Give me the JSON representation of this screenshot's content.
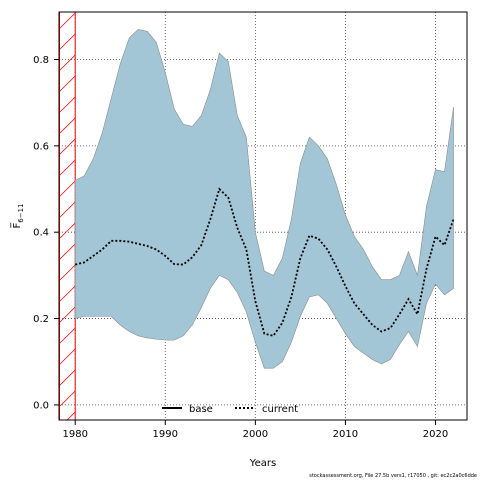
{
  "chart_data": {
    "type": "area",
    "xlabel": "Years",
    "ylabel": "F̅",
    "ylabel_subscript": "6−11",
    "xlim": [
      1978.2,
      2023.5
    ],
    "ylim": [
      -0.035,
      0.91
    ],
    "x_ticks": [
      1980,
      1990,
      2000,
      2010,
      2020
    ],
    "y_ticks": [
      0.0,
      0.2,
      0.4,
      0.6,
      0.8
    ],
    "y_tick_labels": [
      "0.0",
      "0.2",
      "0.4",
      "0.6",
      "0.8"
    ],
    "grid": true,
    "legend_placement": "bottom-center",
    "hatched_region": [
      1978.2,
      1980
    ],
    "colors": {
      "band_fill": "#a3c6d6",
      "band_stroke": "#8a8a8a",
      "current_line": "#000000",
      "hatch": "#ff0000"
    },
    "band": {
      "x": [
        1980,
        1981,
        1982,
        1983,
        1984,
        1985,
        1986,
        1987,
        1988,
        1989,
        1990,
        1991,
        1992,
        1993,
        1994,
        1995,
        1996,
        1997,
        1998,
        1999,
        2000,
        2001,
        2002,
        2003,
        2004,
        2005,
        2006,
        2007,
        2008,
        2009,
        2010,
        2011,
        2012,
        2013,
        2014,
        2015,
        2016,
        2017,
        2018,
        2019,
        2020,
        2021,
        2022
      ],
      "upper": [
        0.52,
        0.53,
        0.57,
        0.63,
        0.71,
        0.79,
        0.85,
        0.87,
        0.865,
        0.84,
        0.77,
        0.685,
        0.65,
        0.645,
        0.67,
        0.73,
        0.815,
        0.795,
        0.67,
        0.62,
        0.4,
        0.31,
        0.3,
        0.34,
        0.43,
        0.56,
        0.62,
        0.6,
        0.57,
        0.51,
        0.44,
        0.39,
        0.36,
        0.32,
        0.29,
        0.29,
        0.3,
        0.355,
        0.3,
        0.46,
        0.545,
        0.54,
        0.69
      ],
      "lower": [
        0.2,
        0.205,
        0.205,
        0.205,
        0.205,
        0.185,
        0.17,
        0.16,
        0.155,
        0.152,
        0.15,
        0.15,
        0.16,
        0.185,
        0.225,
        0.27,
        0.3,
        0.29,
        0.26,
        0.215,
        0.145,
        0.085,
        0.085,
        0.1,
        0.145,
        0.205,
        0.25,
        0.255,
        0.235,
        0.2,
        0.165,
        0.135,
        0.12,
        0.105,
        0.095,
        0.105,
        0.14,
        0.17,
        0.135,
        0.235,
        0.28,
        0.255,
        0.27
      ]
    },
    "series": [
      {
        "name": "current",
        "style": "dotted",
        "x": [
          1980,
          1981,
          1982,
          1983,
          1984,
          1985,
          1986,
          1987,
          1988,
          1989,
          1990,
          1991,
          1992,
          1993,
          1994,
          1995,
          1996,
          1997,
          1998,
          1999,
          2000,
          2001,
          2002,
          2003,
          2004,
          2005,
          2006,
          2007,
          2008,
          2009,
          2010,
          2011,
          2012,
          2013,
          2014,
          2015,
          2016,
          2017,
          2018,
          2019,
          2020,
          2021,
          2022
        ],
        "y": [
          0.325,
          0.33,
          0.345,
          0.36,
          0.38,
          0.38,
          0.378,
          0.373,
          0.368,
          0.36,
          0.345,
          0.326,
          0.325,
          0.342,
          0.37,
          0.43,
          0.5,
          0.48,
          0.41,
          0.36,
          0.24,
          0.165,
          0.16,
          0.19,
          0.25,
          0.34,
          0.392,
          0.385,
          0.36,
          0.32,
          0.275,
          0.235,
          0.21,
          0.185,
          0.17,
          0.178,
          0.21,
          0.245,
          0.21,
          0.315,
          0.39,
          0.37,
          0.43
        ]
      }
    ],
    "legend": [
      {
        "label": "base",
        "style": "solid"
      },
      {
        "label": "current",
        "style": "dotted"
      }
    ]
  },
  "footnote": "stockassessment.org, File 27.5b vers1, r17050 , git: ec2c2a0c6dde"
}
